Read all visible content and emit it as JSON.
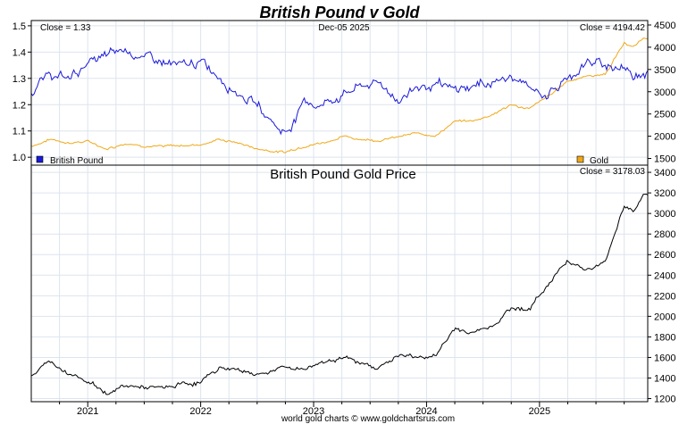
{
  "title": "British Pound v Gold",
  "colors": {
    "title": "#1010d0",
    "pound": "#1a1ad8",
    "gold": "#f0a818",
    "price": "#000000",
    "grid": "#dde4ee",
    "frame": "#000000"
  },
  "top_panel": {
    "close_left": "Close = 1.33",
    "date": "Dec-05  2025",
    "close_right": "Close = 4194.42",
    "legend_pound": "British Pound",
    "legend_gold": "Gold"
  },
  "bottom_panel": {
    "title": "British Pound Gold Price",
    "close_right": "Close = 3178.03"
  },
  "footer": "world gold charts © www.goldchartsrus.com",
  "chart_data": [
    {
      "type": "line",
      "title": "British Pound v Gold",
      "x": [
        "2020-07",
        "2020-09",
        "2020-11",
        "2021-01",
        "2021-03",
        "2021-05",
        "2021-07",
        "2021-09",
        "2021-11",
        "2022-01",
        "2022-03",
        "2022-05",
        "2022-07",
        "2022-09",
        "2022-10",
        "2022-12",
        "2023-02",
        "2023-04",
        "2023-06",
        "2023-08",
        "2023-10",
        "2023-12",
        "2024-02",
        "2024-04",
        "2024-06",
        "2024-08",
        "2024-10",
        "2024-12",
        "2025-02",
        "2025-04",
        "2025-06",
        "2025-08",
        "2025-10",
        "2025-11",
        "2025-12"
      ],
      "xticks": [
        "2021",
        "2022",
        "2023",
        "2024",
        "2025"
      ],
      "series": [
        {
          "name": "British Pound",
          "axis": "left",
          "values": [
            1.25,
            1.31,
            1.3,
            1.36,
            1.38,
            1.41,
            1.38,
            1.36,
            1.34,
            1.36,
            1.31,
            1.25,
            1.2,
            1.12,
            1.09,
            1.21,
            1.2,
            1.24,
            1.27,
            1.28,
            1.22,
            1.27,
            1.27,
            1.25,
            1.27,
            1.29,
            1.3,
            1.26,
            1.24,
            1.3,
            1.36,
            1.35,
            1.34,
            1.31,
            1.33
          ]
        },
        {
          "name": "Gold",
          "axis": "right",
          "values": [
            1780,
            1930,
            1860,
            1880,
            1720,
            1850,
            1800,
            1760,
            1790,
            1820,
            1930,
            1850,
            1720,
            1660,
            1640,
            1800,
            1860,
            1990,
            1940,
            1920,
            1980,
            2060,
            2030,
            2330,
            2340,
            2500,
            2700,
            2620,
            2900,
            3250,
            3350,
            3400,
            4100,
            4000,
            4194
          ]
        }
      ],
      "ylim_left": [
        0.97,
        1.52
      ],
      "yticks_left": [
        1.0,
        1.1,
        1.2,
        1.3,
        1.4,
        1.5
      ],
      "ylim_right": [
        1350,
        4600
      ],
      "yticks_right": [
        1500,
        2000,
        2500,
        3000,
        3500,
        4000,
        4500
      ]
    },
    {
      "type": "line",
      "title": "British Pound Gold Price",
      "x": [
        "2020-07",
        "2020-09",
        "2020-11",
        "2021-01",
        "2021-03",
        "2021-05",
        "2021-07",
        "2021-09",
        "2021-11",
        "2022-01",
        "2022-03",
        "2022-05",
        "2022-07",
        "2022-09",
        "2022-10",
        "2022-12",
        "2023-02",
        "2023-04",
        "2023-06",
        "2023-08",
        "2023-10",
        "2023-12",
        "2024-02",
        "2024-04",
        "2024-06",
        "2024-08",
        "2024-10",
        "2024-12",
        "2025-02",
        "2025-04",
        "2025-06",
        "2025-08",
        "2025-10",
        "2025-11",
        "2025-12"
      ],
      "xticks": [
        "2021",
        "2022",
        "2023",
        "2024",
        "2025"
      ],
      "series": [
        {
          "name": "British Pound Gold Price",
          "values": [
            1420,
            1560,
            1460,
            1380,
            1250,
            1320,
            1310,
            1290,
            1340,
            1360,
            1500,
            1480,
            1440,
            1480,
            1500,
            1490,
            1560,
            1610,
            1530,
            1510,
            1620,
            1600,
            1620,
            1880,
            1840,
            1920,
            2080,
            2080,
            2320,
            2560,
            2450,
            2520,
            3100,
            3020,
            3178
          ]
        }
      ],
      "ylim": [
        1170,
        3470
      ],
      "yticks": [
        1200,
        1400,
        1600,
        1800,
        2000,
        2200,
        2400,
        2600,
        2800,
        3000,
        3200,
        3400
      ]
    }
  ]
}
